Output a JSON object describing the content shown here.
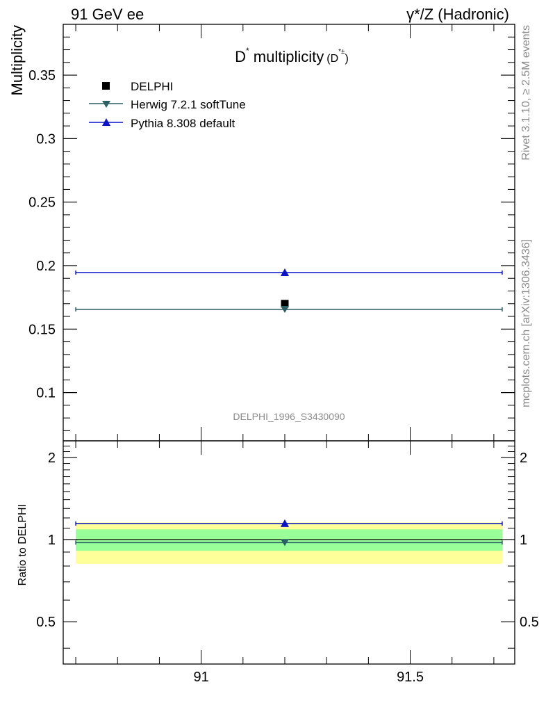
{
  "header": {
    "energy": "91 GeV ee",
    "process": "γ*/Z (Hadronic)"
  },
  "side_labels": {
    "rivet": "Rivet 3.1.10, ≥ 2.5M events",
    "source": "mcplots.cern.ch [arXiv:1306.3436]"
  },
  "watermark": "DELPHI_1996_S3430090",
  "colors": {
    "data": "#000000",
    "herwig": "#2a5f63",
    "pythia": "#0a14c8",
    "band_outer": "#ffff99",
    "band_inner": "#99ff99"
  },
  "chart_data": [
    {
      "type": "scatter",
      "panel": "main",
      "title_main": "D",
      "title_sup": "*",
      "title_rest": " multiplicity",
      "title_sub": "(D",
      "title_sub_sup": "*±",
      "title_sub_close": ")",
      "ylabel": "Multiplicity",
      "xlim": [
        90.67,
        91.75
      ],
      "ylim": [
        0.062,
        0.39
      ],
      "yticks": [
        0.1,
        0.15,
        0.2,
        0.25,
        0.3,
        0.35
      ],
      "ytick_labels": [
        "0.1",
        "0.15",
        "0.2",
        "0.25",
        "0.3",
        "0.35"
      ],
      "x_bin": [
        90.7,
        91.72
      ],
      "x_center": 91.2,
      "series": [
        {
          "name": "DELPHI",
          "key": "data",
          "marker": "square",
          "y": 0.17
        },
        {
          "name": "Herwig 7.2.1 softTune",
          "key": "herwig",
          "marker": "triangle-down",
          "y": 0.1655
        },
        {
          "name": "Pythia 8.308 default",
          "key": "pythia",
          "marker": "triangle-up",
          "y": 0.1945
        }
      ],
      "legend": [
        "DELPHI",
        "Herwig 7.2.1 softTune",
        "Pythia 8.308 default"
      ]
    },
    {
      "type": "scatter",
      "panel": "ratio",
      "ylabel": "Ratio to DELPHI",
      "xlabel_ticks": [
        "91",
        "91.5"
      ],
      "xticks": [
        91,
        91.5
      ],
      "xlim": [
        90.67,
        91.75
      ],
      "ylim": [
        0.35,
        2.3
      ],
      "yticks": [
        0.5,
        1,
        2
      ],
      "ytick_labels": [
        "0.5",
        "1",
        "2"
      ],
      "band_outer": [
        0.815,
        1.155
      ],
      "band_inner": [
        0.91,
        1.09
      ],
      "series": [
        {
          "name": "Herwig 7.2.1 softTune",
          "key": "herwig",
          "marker": "triangle-down",
          "y": 0.975
        },
        {
          "name": "Pythia 8.308 default",
          "key": "pythia",
          "marker": "triangle-up",
          "y": 1.145
        }
      ]
    }
  ]
}
